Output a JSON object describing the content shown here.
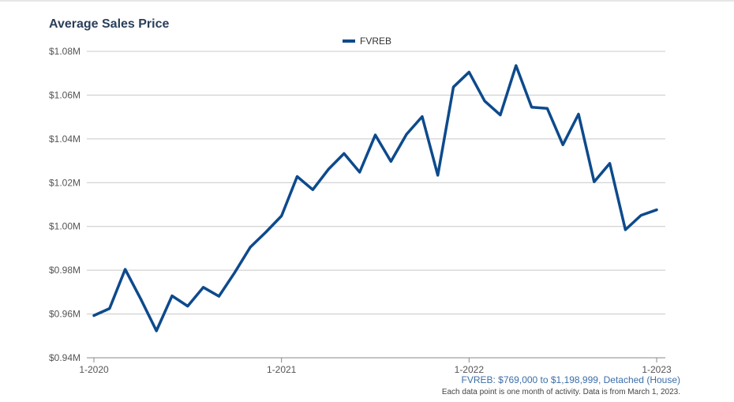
{
  "chart_data": {
    "type": "line",
    "title": "Average Sales Price",
    "legend": {
      "position": "top-center"
    },
    "series": [
      {
        "name": "FVREB",
        "color": "#0d4a8c",
        "x": [
          "2020-01",
          "2020-02",
          "2020-03",
          "2020-04",
          "2020-05",
          "2020-06",
          "2020-07",
          "2020-08",
          "2020-09",
          "2020-10",
          "2020-11",
          "2020-12",
          "2021-01",
          "2021-02",
          "2021-03",
          "2021-04",
          "2021-05",
          "2021-06",
          "2021-07",
          "2021-08",
          "2021-09",
          "2021-10",
          "2021-11",
          "2021-12",
          "2022-01",
          "2022-02",
          "2022-03",
          "2022-04",
          "2022-05",
          "2022-06",
          "2022-07",
          "2022-08",
          "2022-09",
          "2022-10",
          "2022-11",
          "2022-12",
          "2023-01"
        ],
        "values": [
          959300,
          962500,
          980400,
          966800,
          952300,
          968300,
          963600,
          972200,
          968100,
          978900,
          990500,
          997400,
          1004800,
          1022800,
          1016800,
          1026100,
          1033300,
          1024800,
          1041800,
          1029700,
          1042100,
          1050200,
          1023400,
          1063700,
          1070500,
          1057300,
          1050900,
          1073500,
          1054500,
          1053900,
          1037300,
          1051300,
          1020400,
          1028800,
          998500,
          1005100,
          1007600
        ]
      }
    ],
    "yaxis": {
      "min": 940000,
      "max": 1080000,
      "ticks": [
        "$0.94M",
        "$0.96M",
        "$0.98M",
        "$1.00M",
        "$1.02M",
        "$1.04M",
        "$1.06M",
        "$1.08M"
      ],
      "tick_values": [
        940000,
        960000,
        980000,
        1000000,
        1020000,
        1040000,
        1060000,
        1080000
      ],
      "grid": true
    },
    "xaxis": {
      "ticks": [
        "1-2020",
        "1-2021",
        "1-2022",
        "1-2023"
      ],
      "tick_indices": [
        0,
        12,
        24,
        36
      ]
    },
    "footnote": "FVREB: $769,000 to $1,198,999, Detached (House)",
    "note": "Each data point is one month of activity. Data is from March 1, 2023."
  }
}
